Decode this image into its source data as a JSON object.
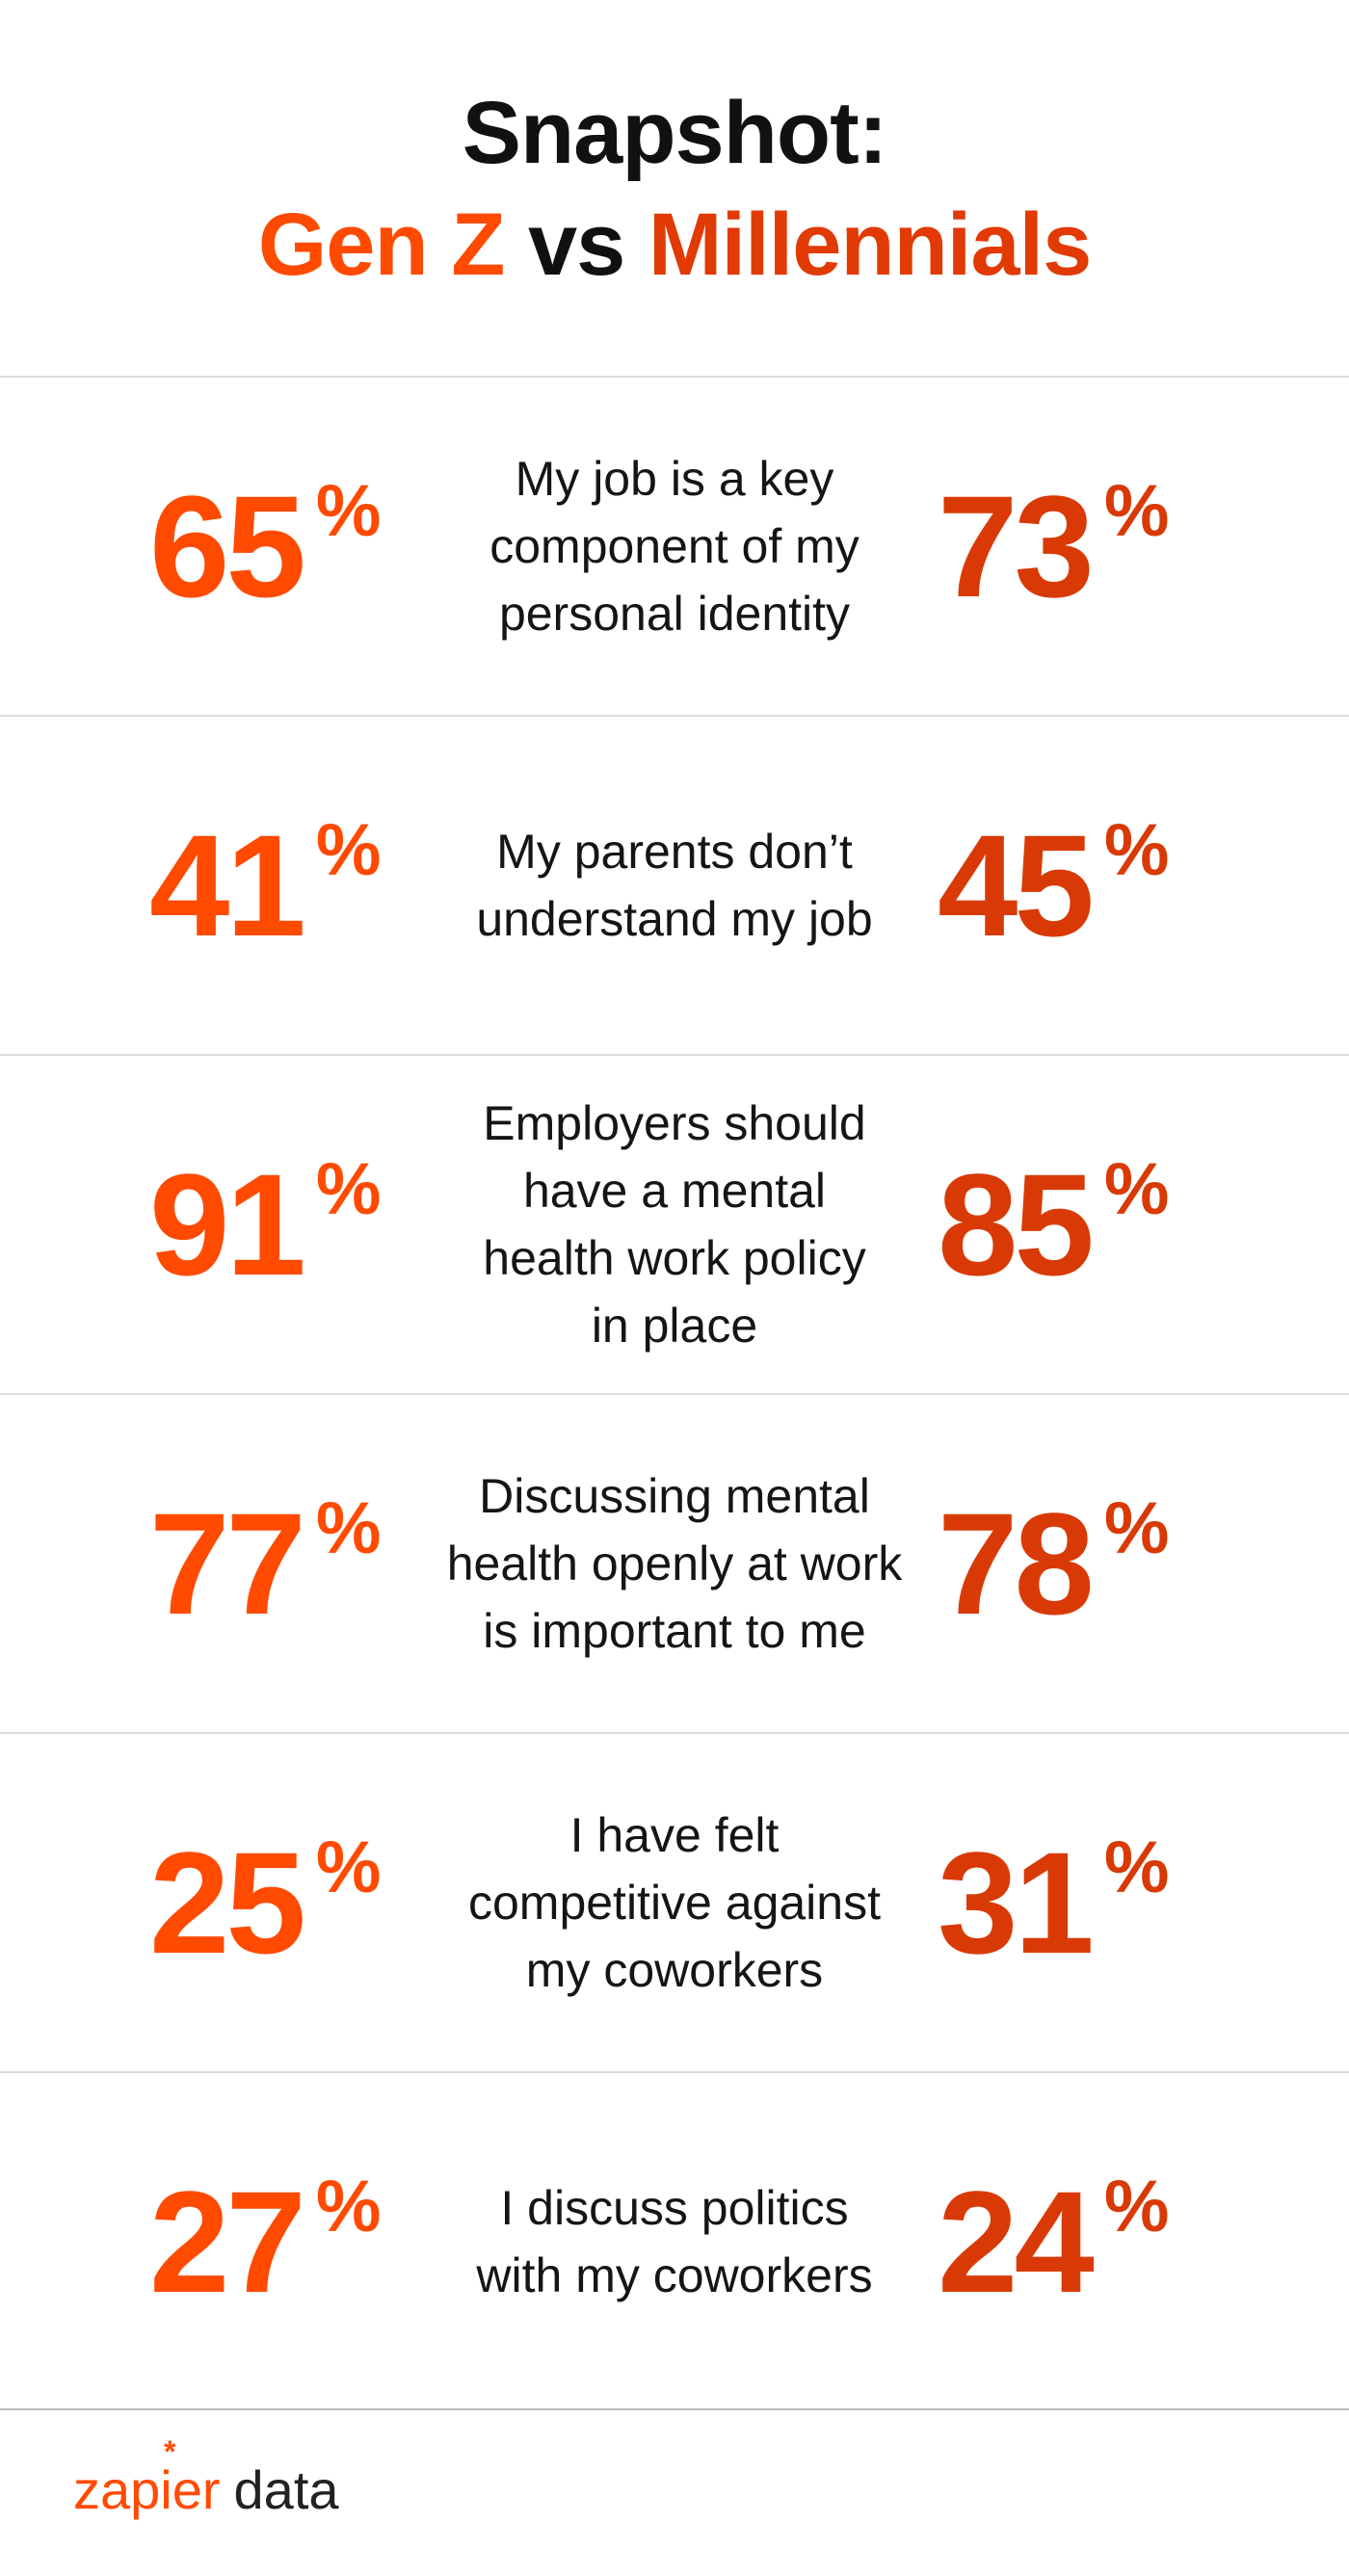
{
  "header": {
    "title": "Snapshot:",
    "subtitle_left": "Gen Z",
    "subtitle_mid": "vs",
    "subtitle_right": "Millennials"
  },
  "colors": {
    "gen_z": "#ff4a00",
    "millennials": "#d93a05",
    "text": "#151515",
    "divider": "#dcdcdc"
  },
  "chart_data": {
    "type": "table",
    "title": "Snapshot: Gen Z vs Millennials",
    "columns": [
      "Gen Z",
      "Statement",
      "Millennials"
    ],
    "unit": "%",
    "rows": [
      {
        "gen_z": "65",
        "statement": [
          "My job is a key",
          "component of my",
          "personal identity"
        ],
        "millennials": "73"
      },
      {
        "gen_z": "41",
        "statement": [
          "My parents don’t",
          "understand my job"
        ],
        "millennials": "45"
      },
      {
        "gen_z": "91",
        "statement": [
          "Employers should",
          "have a mental",
          "health work policy",
          "in place"
        ],
        "millennials": "85"
      },
      {
        "gen_z": "77",
        "statement": [
          "Discussing mental",
          "health openly at work",
          "is important to me"
        ],
        "millennials": "78"
      },
      {
        "gen_z": "25",
        "statement": [
          "I have felt",
          "competitive against",
          "my coworkers"
        ],
        "millennials": "31"
      },
      {
        "gen_z": "27",
        "statement": [
          "I discuss politics",
          "with my coworkers"
        ],
        "millennials": "24"
      }
    ]
  },
  "footer": {
    "brand": "zapier",
    "word": "data",
    "asterisk": "*",
    "logo_icon": "zapier-asterisk-icon"
  }
}
